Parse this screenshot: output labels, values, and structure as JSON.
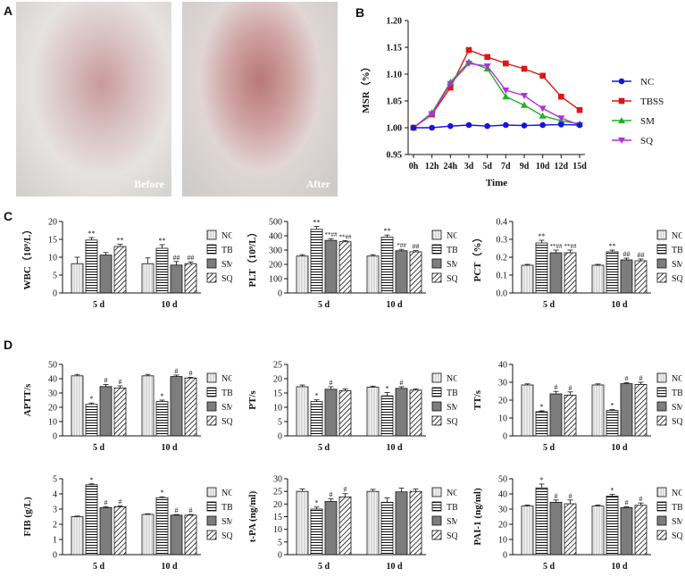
{
  "panels": {
    "a": "A",
    "b": "B",
    "c": "C",
    "d": "D"
  },
  "photos": {
    "before": "Before",
    "after": "After"
  },
  "colors": {
    "NC": "#1515e0",
    "TBSS": "#e01515",
    "SM": "#22b022",
    "SQ": "#b52ee0"
  },
  "chart_data": [
    {
      "type": "line",
      "id": "B",
      "xlabel": "Time",
      "ylabel": "MSR（%）",
      "categories": [
        "0h",
        "12h",
        "24h",
        "3d",
        "5d",
        "7d",
        "9d",
        "10d",
        "12d",
        "15d"
      ],
      "ylim": [
        0.95,
        1.2
      ],
      "yticks": [
        "0.95",
        "1.00",
        "1.05",
        "1.10",
        "1.15",
        "1.20"
      ],
      "series": [
        {
          "name": "NC",
          "values": [
            1.0,
            1.0,
            1.003,
            1.005,
            1.003,
            1.005,
            1.004,
            1.005,
            1.006,
            1.005
          ]
        },
        {
          "name": "TBSS",
          "values": [
            1.0,
            1.025,
            1.075,
            1.145,
            1.132,
            1.12,
            1.11,
            1.097,
            1.058,
            1.033
          ]
        },
        {
          "name": "SM",
          "values": [
            1.0,
            1.028,
            1.085,
            1.123,
            1.11,
            1.058,
            1.042,
            1.022,
            1.013,
            1.007
          ]
        },
        {
          "name": "SQ",
          "values": [
            1.0,
            1.026,
            1.082,
            1.12,
            1.115,
            1.07,
            1.06,
            1.036,
            1.018,
            1.005
          ]
        }
      ]
    },
    {
      "type": "bar",
      "id": "wbc",
      "ylabel": "WBC（10⁹/L）",
      "categories": [
        "5 d",
        "10 d"
      ],
      "ylim": [
        0,
        20
      ],
      "yticks": [
        "0",
        "5",
        "10",
        "15",
        "20"
      ],
      "series": [
        {
          "name": "NC",
          "values": [
            8.2,
            8.2
          ],
          "err": [
            1.8,
            1.6
          ]
        },
        {
          "name": "TBSS",
          "values": [
            14.8,
            12.5
          ],
          "err": [
            0.7,
            1.0
          ]
        },
        {
          "name": "SM",
          "values": [
            10.6,
            7.8
          ],
          "err": [
            0.7,
            1.0
          ]
        },
        {
          "name": "SQ",
          "values": [
            13.0,
            8.2
          ],
          "err": [
            0.6,
            0.5
          ]
        }
      ],
      "annotations": [
        [
          "",
          "**",
          "",
          "**"
        ],
        [
          "",
          "**",
          "##",
          "##"
        ]
      ]
    },
    {
      "type": "bar",
      "id": "plt",
      "ylabel": "PLT（10⁹/L）",
      "categories": [
        "5 d",
        "10 d"
      ],
      "ylim": [
        0,
        500
      ],
      "yticks": [
        "0",
        "100",
        "200",
        "300",
        "400",
        "500"
      ],
      "series": [
        {
          "name": "NC",
          "values": [
            258,
            258
          ],
          "err": [
            10,
            10
          ]
        },
        {
          "name": "TBSS",
          "values": [
            445,
            390
          ],
          "err": [
            20,
            15
          ]
        },
        {
          "name": "SM",
          "values": [
            368,
            295
          ],
          "err": [
            12,
            10
          ]
        },
        {
          "name": "SQ",
          "values": [
            358,
            288
          ],
          "err": [
            8,
            8
          ]
        }
      ],
      "annotations": [
        [
          "",
          "**",
          "**##",
          "**##"
        ],
        [
          "",
          "**",
          "*##",
          "##"
        ]
      ]
    },
    {
      "type": "bar",
      "id": "pct",
      "ylabel": "PCT（%）",
      "categories": [
        "5 d",
        "10 d"
      ],
      "ylim": [
        0,
        0.4
      ],
      "yticks": [
        "0.0",
        "0.1",
        "0.2",
        "0.3",
        "0.4"
      ],
      "series": [
        {
          "name": "NC",
          "values": [
            0.155,
            0.155
          ],
          "err": [
            0.005,
            0.005
          ]
        },
        {
          "name": "TBSS",
          "values": [
            0.28,
            0.23
          ],
          "err": [
            0.015,
            0.01
          ]
        },
        {
          "name": "SM",
          "values": [
            0.225,
            0.185
          ],
          "err": [
            0.015,
            0.01
          ]
        },
        {
          "name": "SQ",
          "values": [
            0.225,
            0.18
          ],
          "err": [
            0.015,
            0.01
          ]
        }
      ],
      "annotations": [
        [
          "",
          "**",
          "**##",
          "**##"
        ],
        [
          "",
          "**",
          "##",
          "##"
        ]
      ]
    },
    {
      "type": "bar",
      "id": "aptt",
      "ylabel": "APTT/s",
      "categories": [
        "5 d",
        "10 d"
      ],
      "ylim": [
        0,
        50
      ],
      "yticks": [
        "0",
        "10",
        "20",
        "30",
        "40",
        "50"
      ],
      "series": [
        {
          "name": "NC",
          "values": [
            42,
            42
          ],
          "err": [
            1,
            1
          ]
        },
        {
          "name": "TBSS",
          "values": [
            22,
            24
          ],
          "err": [
            1,
            1
          ]
        },
        {
          "name": "SM",
          "values": [
            34.5,
            41.5
          ],
          "err": [
            1.5,
            1
          ]
        },
        {
          "name": "SQ",
          "values": [
            33.5,
            40.5
          ],
          "err": [
            1.5,
            0.5
          ]
        }
      ],
      "annotations": [
        [
          "",
          "*",
          "#",
          "#"
        ],
        [
          "",
          "*",
          "#",
          "#"
        ]
      ]
    },
    {
      "type": "bar",
      "id": "pt",
      "ylabel": "PT/s",
      "categories": [
        "5 d",
        "10 d"
      ],
      "ylim": [
        0,
        25
      ],
      "yticks": [
        "0",
        "5",
        "10",
        "15",
        "20",
        "25"
      ],
      "series": [
        {
          "name": "NC",
          "values": [
            17.2,
            17.0
          ],
          "err": [
            0.6,
            0.4
          ]
        },
        {
          "name": "TBSS",
          "values": [
            12.0,
            14.0
          ],
          "err": [
            0.6,
            1.2
          ]
        },
        {
          "name": "SM",
          "values": [
            16.3,
            16.6
          ],
          "err": [
            0.9,
            0.6
          ]
        },
        {
          "name": "SQ",
          "values": [
            15.8,
            16.0
          ],
          "err": [
            0.6,
            0.4
          ]
        }
      ],
      "annotations": [
        [
          "",
          "*",
          "#",
          ""
        ],
        [
          "",
          "*",
          "#",
          ""
        ]
      ]
    },
    {
      "type": "bar",
      "id": "tt",
      "ylabel": "TT/s",
      "categories": [
        "5 d",
        "10 d"
      ],
      "ylim": [
        0,
        40
      ],
      "yticks": [
        "0",
        "10",
        "20",
        "30",
        "40"
      ],
      "series": [
        {
          "name": "NC",
          "values": [
            28.5,
            28.5
          ],
          "err": [
            0.6,
            0.6
          ]
        },
        {
          "name": "TBSS",
          "values": [
            13.5,
            14.2
          ],
          "err": [
            0.5,
            0.5
          ]
        },
        {
          "name": "SM",
          "values": [
            23.5,
            29.2
          ],
          "err": [
            1.4,
            0.6
          ]
        },
        {
          "name": "SQ",
          "values": [
            22.8,
            28.8
          ],
          "err": [
            1.8,
            1.2
          ]
        }
      ],
      "annotations": [
        [
          "",
          "*",
          "#",
          "#"
        ],
        [
          "",
          "*",
          "#",
          "#"
        ]
      ]
    },
    {
      "type": "bar",
      "id": "fib",
      "ylabel": "FIB (g/L)",
      "categories": [
        "5 d",
        "10 d"
      ],
      "ylim": [
        0,
        5
      ],
      "yticks": [
        "0",
        "1",
        "2",
        "3",
        "4",
        "5"
      ],
      "series": [
        {
          "name": "NC",
          "values": [
            2.5,
            2.65
          ],
          "err": [
            0.04,
            0.04
          ]
        },
        {
          "name": "TBSS",
          "values": [
            4.6,
            3.75
          ],
          "err": [
            0.06,
            0.06
          ]
        },
        {
          "name": "SM",
          "values": [
            3.1,
            2.6
          ],
          "err": [
            0.06,
            0.04
          ]
        },
        {
          "name": "SQ",
          "values": [
            3.15,
            2.6
          ],
          "err": [
            0.05,
            0.04
          ]
        }
      ],
      "annotations": [
        [
          "",
          "*",
          "#",
          "#"
        ],
        [
          "",
          "*",
          "#",
          "#"
        ]
      ]
    },
    {
      "type": "bar",
      "id": "tpa",
      "ylabel": "t-PA (ng/ml)",
      "categories": [
        "5 d",
        "10 d"
      ],
      "ylim": [
        0,
        30
      ],
      "yticks": [
        "0",
        "5",
        "10",
        "15",
        "20",
        "25",
        "30"
      ],
      "series": [
        {
          "name": "NC",
          "values": [
            25.0,
            25.0
          ],
          "err": [
            1.0,
            0.8
          ]
        },
        {
          "name": "TBSS",
          "values": [
            18.0,
            20.7
          ],
          "err": [
            0.8,
            1.7
          ]
        },
        {
          "name": "SM",
          "values": [
            21.0,
            24.8
          ],
          "err": [
            1.0,
            1.5
          ]
        },
        {
          "name": "SQ",
          "values": [
            22.8,
            25.0
          ],
          "err": [
            1.3,
            0.9
          ]
        }
      ],
      "annotations": [
        [
          "",
          "*",
          "#",
          "#"
        ],
        [
          "",
          "",
          "",
          ""
        ]
      ]
    },
    {
      "type": "bar",
      "id": "pai1",
      "ylabel": "PAI-1 (ng/ml)",
      "categories": [
        "5 d",
        "10 d"
      ],
      "ylim": [
        0,
        50
      ],
      "yticks": [
        "0",
        "10",
        "20",
        "30",
        "40",
        "50"
      ],
      "series": [
        {
          "name": "NC",
          "values": [
            32.0,
            32.0
          ],
          "err": [
            0.6,
            0.6
          ]
        },
        {
          "name": "TBSS",
          "values": [
            44.0,
            38.5
          ],
          "err": [
            2.5,
            1.2
          ]
        },
        {
          "name": "SM",
          "values": [
            34.5,
            31.0
          ],
          "err": [
            1.5,
            0.6
          ]
        },
        {
          "name": "SQ",
          "values": [
            33.5,
            32.5
          ],
          "err": [
            2.5,
            1.5
          ]
        }
      ],
      "annotations": [
        [
          "",
          "*",
          "#",
          "#"
        ],
        [
          "",
          "*",
          "#",
          "#"
        ]
      ]
    }
  ]
}
